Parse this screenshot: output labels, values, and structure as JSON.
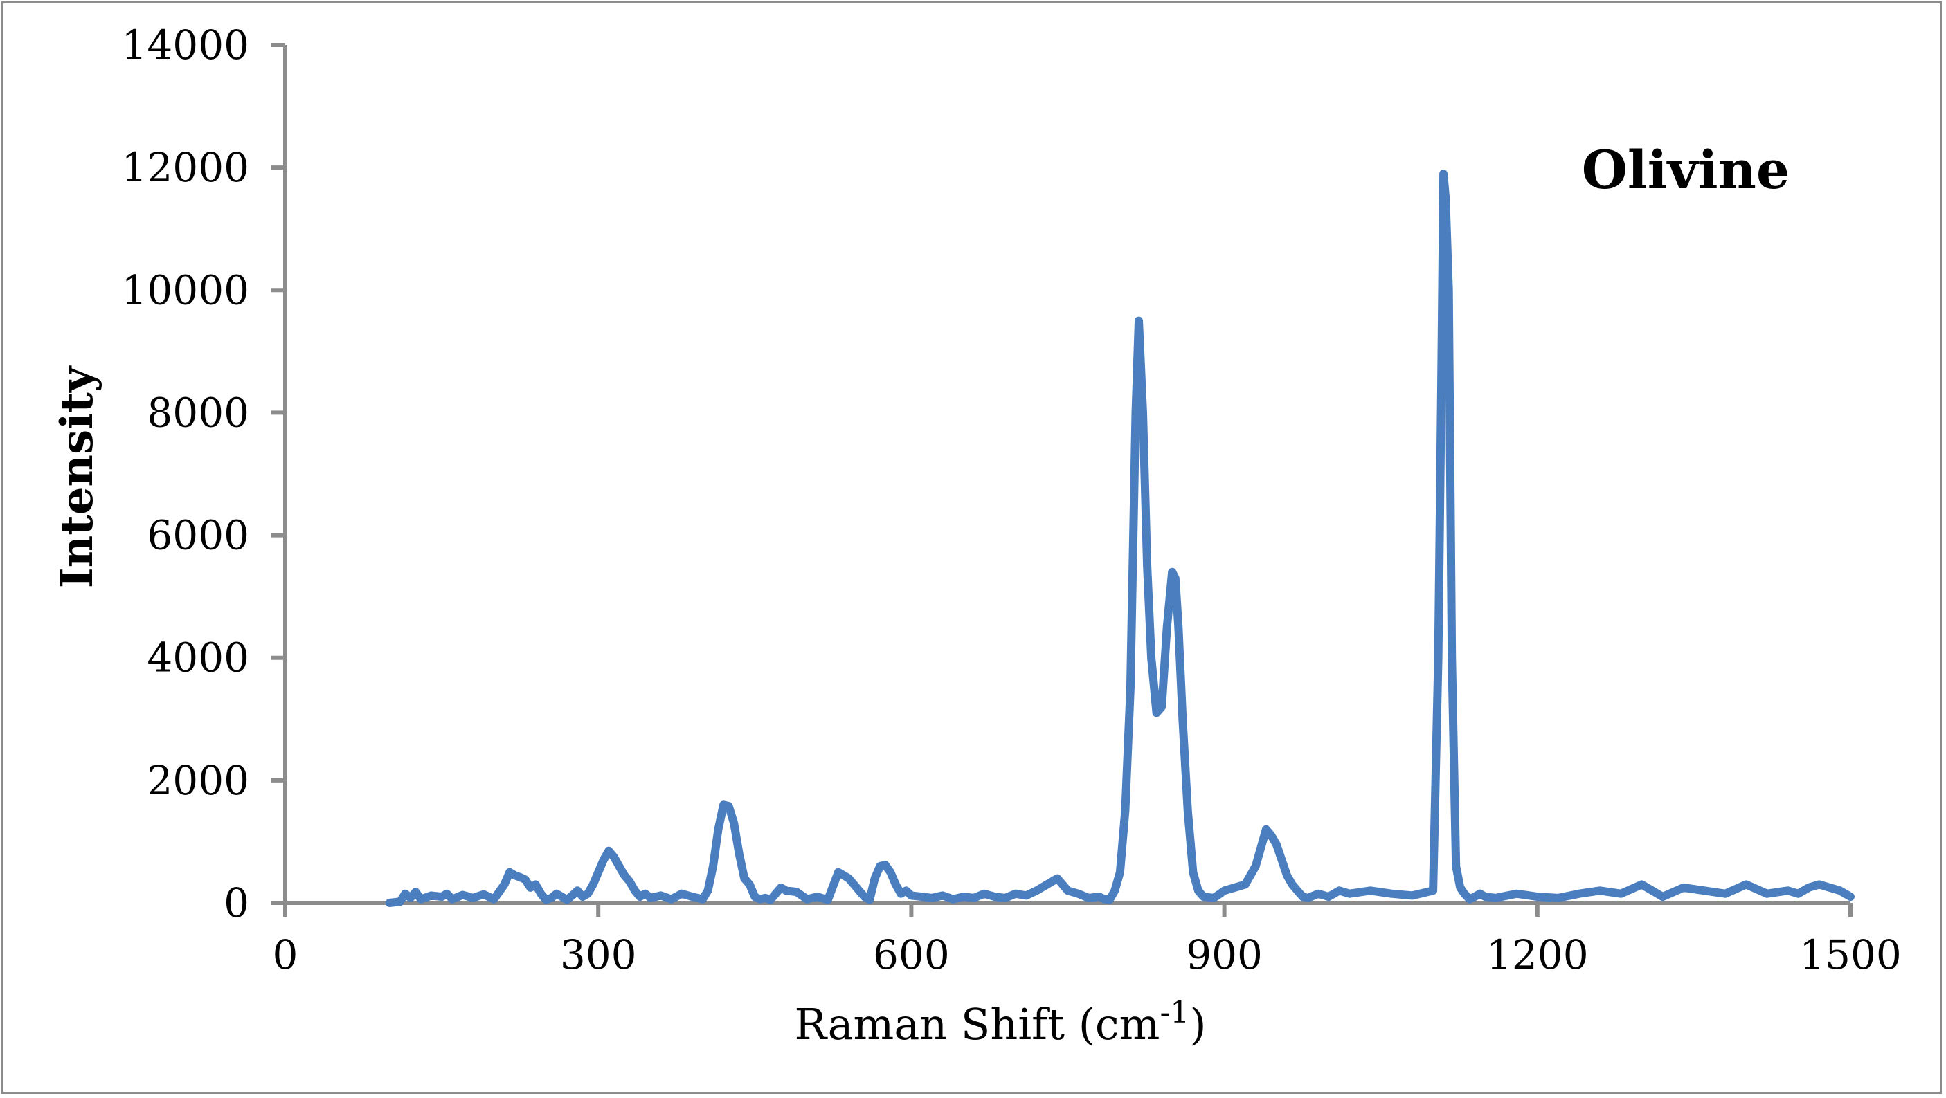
{
  "chart_data": {
    "type": "line",
    "title": "",
    "xlabel": "Raman Shift (cm",
    "xlabel_sup": "-1",
    "xlabel_tail": ")",
    "ylabel": "Intensity",
    "annotation": "Olivine",
    "xlim": [
      0,
      1500
    ],
    "ylim": [
      0,
      14000
    ],
    "x_ticks": [
      0,
      300,
      600,
      900,
      1200,
      1500
    ],
    "y_ticks": [
      0,
      2000,
      4000,
      6000,
      8000,
      10000,
      12000,
      14000
    ],
    "grid": false,
    "legend": "none",
    "line_color": "#4a7ebf",
    "axis_color": "#8c8c8c",
    "series": [
      {
        "x": [
          100,
          110,
          115,
          120,
          125,
          130,
          140,
          150,
          155,
          160,
          170,
          180,
          190,
          200,
          205,
          210,
          215,
          220,
          225,
          230,
          235,
          240,
          245,
          250,
          255,
          260,
          265,
          270,
          275,
          280,
          285,
          290,
          295,
          300,
          305,
          310,
          315,
          320,
          325,
          330,
          335,
          340,
          345,
          350,
          360,
          370,
          380,
          390,
          400,
          405,
          410,
          415,
          420,
          425,
          430,
          435,
          440,
          445,
          450,
          455,
          460,
          465,
          470,
          475,
          480,
          490,
          500,
          510,
          520,
          530,
          535,
          540,
          545,
          550,
          555,
          560,
          565,
          570,
          575,
          580,
          585,
          590,
          595,
          600,
          610,
          620,
          630,
          640,
          650,
          660,
          670,
          680,
          690,
          700,
          710,
          720,
          730,
          740,
          750,
          760,
          770,
          780,
          785,
          790,
          795,
          800,
          805,
          810,
          815,
          818,
          822,
          826,
          830,
          835,
          840,
          845,
          850,
          853,
          856,
          860,
          865,
          870,
          875,
          880,
          890,
          900,
          910,
          920,
          930,
          940,
          945,
          950,
          955,
          960,
          965,
          970,
          975,
          980,
          990,
          1000,
          1010,
          1020,
          1040,
          1060,
          1080,
          1100,
          1105,
          1108,
          1110,
          1112,
          1115,
          1118,
          1122,
          1126,
          1130,
          1135,
          1140,
          1145,
          1150,
          1160,
          1180,
          1200,
          1220,
          1240,
          1260,
          1280,
          1300,
          1320,
          1340,
          1360,
          1380,
          1400,
          1420,
          1440,
          1450,
          1460,
          1470,
          1480,
          1490,
          1500
        ],
        "y": [
          0,
          20,
          150,
          80,
          180,
          60,
          120,
          100,
          150,
          60,
          130,
          80,
          140,
          60,
          180,
          300,
          500,
          450,
          420,
          380,
          250,
          300,
          150,
          50,
          80,
          150,
          100,
          50,
          120,
          200,
          100,
          150,
          300,
          500,
          700,
          850,
          750,
          600,
          450,
          350,
          200,
          100,
          150,
          80,
          120,
          60,
          150,
          100,
          60,
          200,
          600,
          1200,
          1600,
          1580,
          1300,
          800,
          400,
          300,
          100,
          60,
          80,
          50,
          150,
          250,
          200,
          180,
          60,
          100,
          50,
          500,
          450,
          400,
          300,
          200,
          100,
          50,
          400,
          600,
          620,
          500,
          300,
          150,
          200,
          120,
          100,
          80,
          120,
          60,
          100,
          80,
          150,
          100,
          80,
          150,
          120,
          200,
          300,
          400,
          200,
          150,
          80,
          100,
          60,
          50,
          200,
          500,
          1500,
          3500,
          8000,
          9500,
          8000,
          5500,
          4000,
          3100,
          3200,
          4500,
          5400,
          5300,
          4500,
          3000,
          1500,
          500,
          200,
          100,
          80,
          200,
          250,
          300,
          600,
          1200,
          1100,
          950,
          700,
          450,
          300,
          200,
          100,
          80,
          150,
          100,
          200,
          150,
          200,
          150,
          120,
          200,
          4000,
          8500,
          11900,
          11500,
          10000,
          4000,
          600,
          250,
          150,
          60,
          100,
          150,
          100,
          80,
          150,
          100,
          80,
          150,
          200,
          150,
          300,
          100,
          250,
          200,
          150,
          300,
          150,
          200,
          150,
          250,
          300,
          250,
          200,
          100
        ]
      }
    ]
  }
}
